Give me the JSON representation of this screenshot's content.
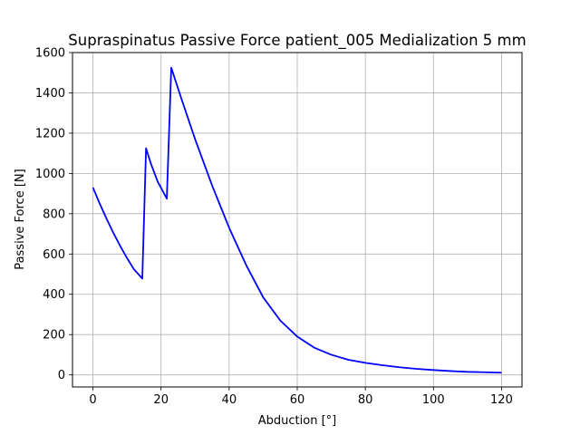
{
  "chart_data": {
    "type": "line",
    "title": "Supraspinatus Passive Force patient_005 Medialization 5 mm",
    "xlabel": "Abduction [°]",
    "ylabel": "Passive Force [N]",
    "xlim": [
      -6,
      126
    ],
    "ylim": [
      -60,
      1600
    ],
    "xticks": [
      0,
      20,
      40,
      60,
      80,
      100,
      120
    ],
    "yticks": [
      0,
      200,
      400,
      600,
      800,
      1000,
      1200,
      1400,
      1600
    ],
    "grid": true,
    "legend": "none",
    "series": [
      {
        "color": "#0000ff",
        "x": [
          0,
          2,
          4,
          6,
          8,
          10,
          12,
          14.5,
          15.6,
          17,
          19,
          21.7,
          23,
          26,
          30,
          35,
          40,
          45,
          50,
          55,
          60,
          65,
          70,
          75,
          80,
          85,
          90,
          95,
          100,
          105,
          110,
          115,
          120
        ],
        "y": [
          930,
          850,
          775,
          705,
          640,
          580,
          525,
          478,
          1125,
          1050,
          960,
          875,
          1525,
          1370,
          1170,
          940,
          730,
          545,
          385,
          270,
          190,
          135,
          100,
          75,
          60,
          48,
          38,
          30,
          24,
          19,
          15,
          13,
          11
        ]
      }
    ]
  }
}
